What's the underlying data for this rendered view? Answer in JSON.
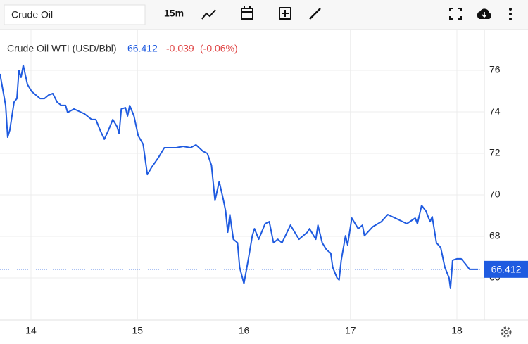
{
  "toolbar": {
    "search": "Crude Oil",
    "interval": "15m"
  },
  "chart_data": {
    "type": "line",
    "series": [
      {
        "name": "Crude Oil WTI (USD/Bbl)",
        "color": "#1f5be0",
        "values": [
          75.83,
          74.31,
          72.78,
          73.12,
          74.47,
          74.64,
          76.0,
          75.66,
          76.24,
          75.32,
          74.98,
          74.81,
          74.64,
          74.64,
          74.81,
          74.88,
          74.47,
          74.31,
          74.31,
          73.97,
          74.14,
          73.9,
          73.63,
          73.63,
          73.12,
          72.68,
          73.12,
          73.63,
          73.29,
          72.95,
          74.14,
          74.2,
          73.8,
          74.31,
          73.8,
          72.85,
          72.44,
          70.98,
          71.32,
          71.76,
          72.27,
          72.27,
          72.27,
          72.34,
          72.27,
          72.41,
          72.1,
          72.0,
          71.42,
          70.41,
          69.73,
          70.64,
          69.73,
          69.22,
          68.2,
          69.05,
          67.86,
          67.69,
          66.51,
          65.73,
          66.85,
          68.03,
          68.37,
          67.86,
          68.61,
          68.71,
          67.69,
          67.86,
          67.69,
          68.54,
          67.86,
          68.2,
          68.37,
          67.86,
          68.54,
          67.69,
          67.36,
          67.19,
          66.51,
          66.0,
          65.9,
          66.85,
          68.03,
          67.59,
          68.88,
          68.37,
          68.54,
          68.03,
          68.47,
          68.71,
          69.05,
          68.81,
          68.61,
          68.88,
          68.61,
          69.49,
          69.22,
          68.71,
          68.95,
          67.69,
          67.46,
          66.51,
          66.0,
          65.49,
          66.85,
          66.92,
          66.92,
          66.68,
          66.41,
          66.41,
          66.41
        ]
      }
    ],
    "x": [
      13.709,
      13.762,
      13.781,
      13.801,
      13.841,
      13.868,
      13.887,
      13.907,
      13.927,
      13.967,
      14.007,
      14.046,
      14.086,
      14.126,
      14.166,
      14.205,
      14.245,
      14.285,
      14.325,
      14.344,
      14.404,
      14.503,
      14.57,
      14.609,
      14.649,
      14.689,
      14.728,
      14.768,
      14.808,
      14.828,
      14.848,
      14.887,
      14.907,
      14.927,
      14.967,
      15.007,
      15.053,
      15.093,
      15.132,
      15.192,
      15.252,
      15.298,
      15.364,
      15.43,
      15.497,
      15.55,
      15.616,
      15.656,
      15.695,
      15.715,
      15.728,
      15.768,
      15.808,
      15.828,
      15.848,
      15.868,
      15.901,
      15.94,
      15.96,
      16.0,
      16.04,
      16.079,
      16.099,
      16.139,
      16.199,
      16.238,
      16.278,
      16.318,
      16.358,
      16.437,
      16.517,
      16.596,
      16.616,
      16.675,
      16.695,
      16.735,
      16.775,
      16.815,
      16.834,
      16.874,
      16.894,
      16.914,
      16.954,
      16.974,
      17.013,
      17.073,
      17.113,
      17.132,
      17.212,
      17.291,
      17.351,
      17.45,
      17.53,
      17.609,
      17.629,
      17.669,
      17.709,
      17.748,
      17.768,
      17.808,
      17.848,
      17.887,
      17.927,
      17.94,
      17.96,
      18.0,
      18.04,
      18.079,
      18.119,
      18.159,
      18.199
    ],
    "last_value": 66.412,
    "change": -0.039,
    "change_percent": {
      "value": -0.06,
      "label": "(-0.06%)"
    },
    "xlim": [
      13.709,
      18.258
    ],
    "xticks": [
      14,
      15,
      16,
      17,
      18
    ],
    "ylim": [
      64,
      78
    ],
    "yticks": [
      66,
      68,
      70,
      72,
      74,
      76
    ],
    "grid": true,
    "value_line_color": "#1f5be0"
  }
}
